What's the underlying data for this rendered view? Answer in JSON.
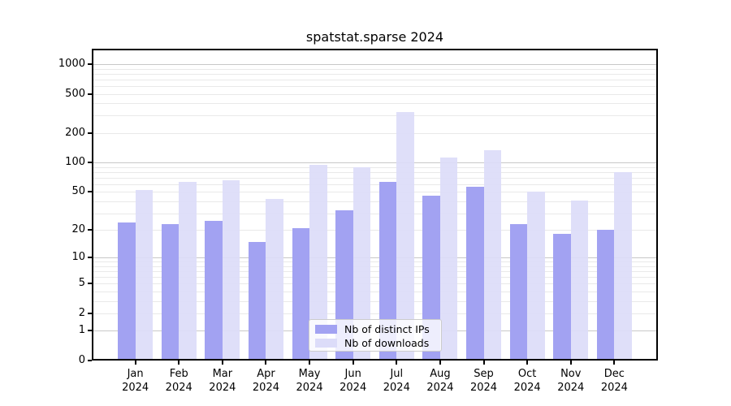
{
  "title": "spatstat.sparse 2024",
  "colors": {
    "ips": "#a2a2f2",
    "downloads": "#dcdcf9",
    "grid_major": "#c8c8c8",
    "grid_minor": "#e9e9e9",
    "axis": "#000000",
    "legend_border": "#cccccc",
    "text": "#000000"
  },
  "legend": {
    "items": [
      {
        "label": "Nb of distinct IPs",
        "color_key": "ips"
      },
      {
        "label": "Nb of downloads",
        "color_key": "downloads"
      }
    ]
  },
  "chart_data": {
    "type": "bar",
    "title": "spatstat.sparse 2024",
    "categories": [
      "Jan 2024",
      "Feb 2024",
      "Mar 2024",
      "Apr 2024",
      "May 2024",
      "Jun 2024",
      "Jul 2024",
      "Aug 2024",
      "Sep 2024",
      "Oct 2024",
      "Nov 2024",
      "Dec 2024"
    ],
    "series": [
      {
        "name": "Nb of distinct IPs",
        "values": [
          24,
          23,
          25,
          15,
          21,
          32,
          64,
          46,
          57,
          23,
          18,
          20
        ]
      },
      {
        "name": "Nb of downloads",
        "values": [
          52,
          64,
          66,
          42,
          95,
          90,
          325,
          112,
          135,
          50,
          41,
          80
        ]
      }
    ],
    "xlabel": "",
    "ylabel": "",
    "yscale": "log1p",
    "yticks": [
      0,
      1,
      2,
      5,
      10,
      20,
      50,
      100,
      200,
      500,
      1000
    ],
    "ytick_major": [
      1,
      10,
      100,
      1000
    ],
    "ylim": [
      0,
      1430
    ],
    "grid": true,
    "legend_position": "lower center"
  }
}
